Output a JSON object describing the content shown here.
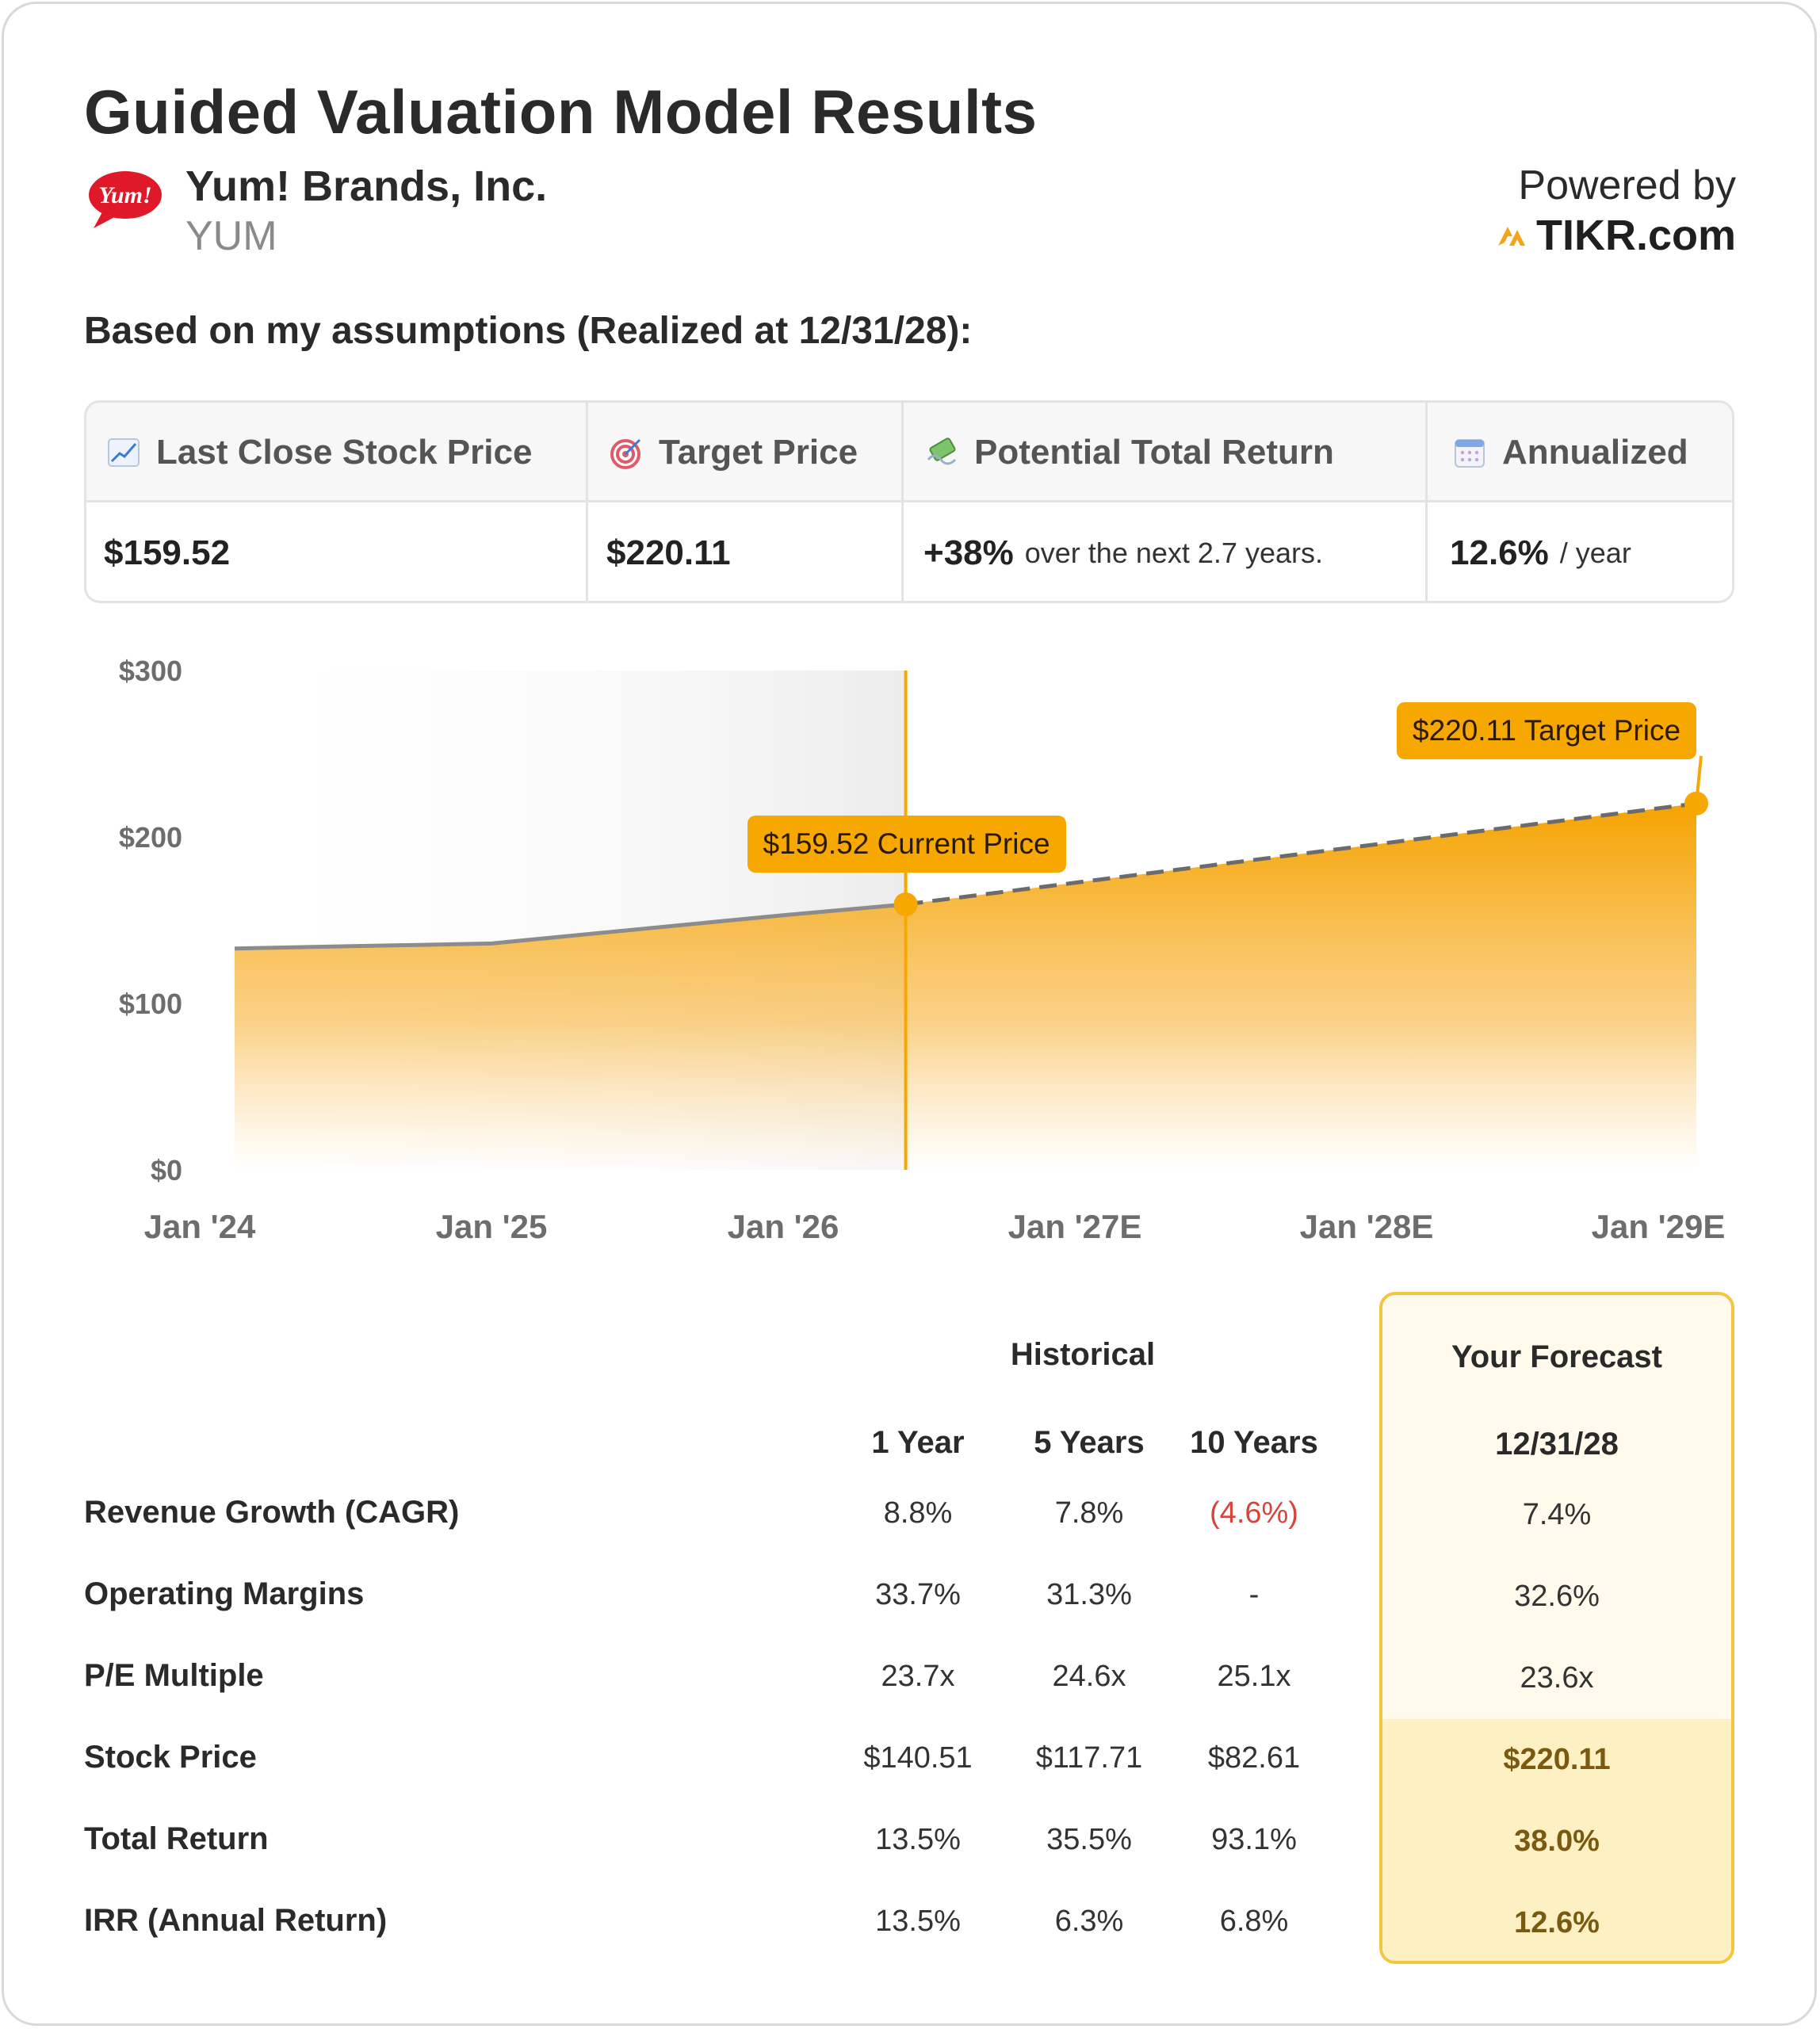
{
  "title": "Guided Valuation Model Results",
  "company": {
    "name": "Yum! Brands, Inc.",
    "ticker": "YUM",
    "logo_text": "Yum!"
  },
  "powered": {
    "label": "Powered by",
    "brand": "TIKR.com"
  },
  "assumptions": "Based on my assumptions (Realized at 12/31/28):",
  "metrics": {
    "headers": [
      {
        "label": "Last Close Stock Price",
        "icon": "chart-increasing-icon"
      },
      {
        "label": "Target Price",
        "icon": "target-icon"
      },
      {
        "label": "Potential Total Return",
        "icon": "money-with-wings-icon"
      },
      {
        "label": "Annualized",
        "icon": "calendar-icon"
      }
    ],
    "last_close": "$159.52",
    "target": "$220.11",
    "return_value": "+38%",
    "return_note": "over the next 2.7 years.",
    "annualized_value": "12.6%",
    "annualized_note": "/ year"
  },
  "colors": {
    "accent": "#f7a800",
    "negative": "#d9443a",
    "forecast_border": "#f3c641"
  },
  "chart_data": {
    "type": "area",
    "x": [
      "Jan '24",
      "Jan '25",
      "Jan '26",
      "current",
      "Jan '29E"
    ],
    "x_ticks": [
      "Jan '24",
      "Jan '25",
      "Jan '26",
      "Jan '27E",
      "Jan '28E",
      "Jan '29E"
    ],
    "y_ticks": [
      "$0",
      "$100",
      "$200",
      "$300"
    ],
    "ylim": [
      0,
      300
    ],
    "historical": [
      {
        "x": 0.0,
        "y": 133
      },
      {
        "x": 1.0,
        "y": 136
      },
      {
        "x": 2.0,
        "y": 153
      },
      {
        "x": 2.42,
        "y": 159.52
      }
    ],
    "forecast": [
      {
        "x": 2.42,
        "y": 159.52
      },
      {
        "x": 5.0,
        "y": 220.11
      }
    ],
    "callouts": {
      "current": "$159.52 Current Price",
      "target": "$220.11 Target Price"
    }
  },
  "table": {
    "group_historical": "Historical",
    "group_forecast": "Your Forecast",
    "columns": [
      "1 Year",
      "5 Years",
      "10 Years"
    ],
    "forecast_date": "12/31/28",
    "rows": [
      {
        "label": "Revenue Growth (CAGR)",
        "values": [
          "8.8%",
          "7.8%",
          "(4.6%)"
        ],
        "forecast": "7.4%"
      },
      {
        "label": "Operating Margins",
        "values": [
          "33.7%",
          "31.3%",
          "-"
        ],
        "forecast": "32.6%"
      },
      {
        "label": "P/E Multiple",
        "values": [
          "23.7x",
          "24.6x",
          "25.1x"
        ],
        "forecast": "23.6x"
      },
      {
        "label": "Stock Price",
        "values": [
          "$140.51",
          "$117.71",
          "$82.61"
        ],
        "forecast": "$220.11"
      },
      {
        "label": "Total Return",
        "values": [
          "13.5%",
          "35.5%",
          "93.1%"
        ],
        "forecast": "38.0%"
      },
      {
        "label": "IRR (Annual Return)",
        "values": [
          "13.5%",
          "6.3%",
          "6.8%"
        ],
        "forecast": "12.6%"
      }
    ]
  }
}
